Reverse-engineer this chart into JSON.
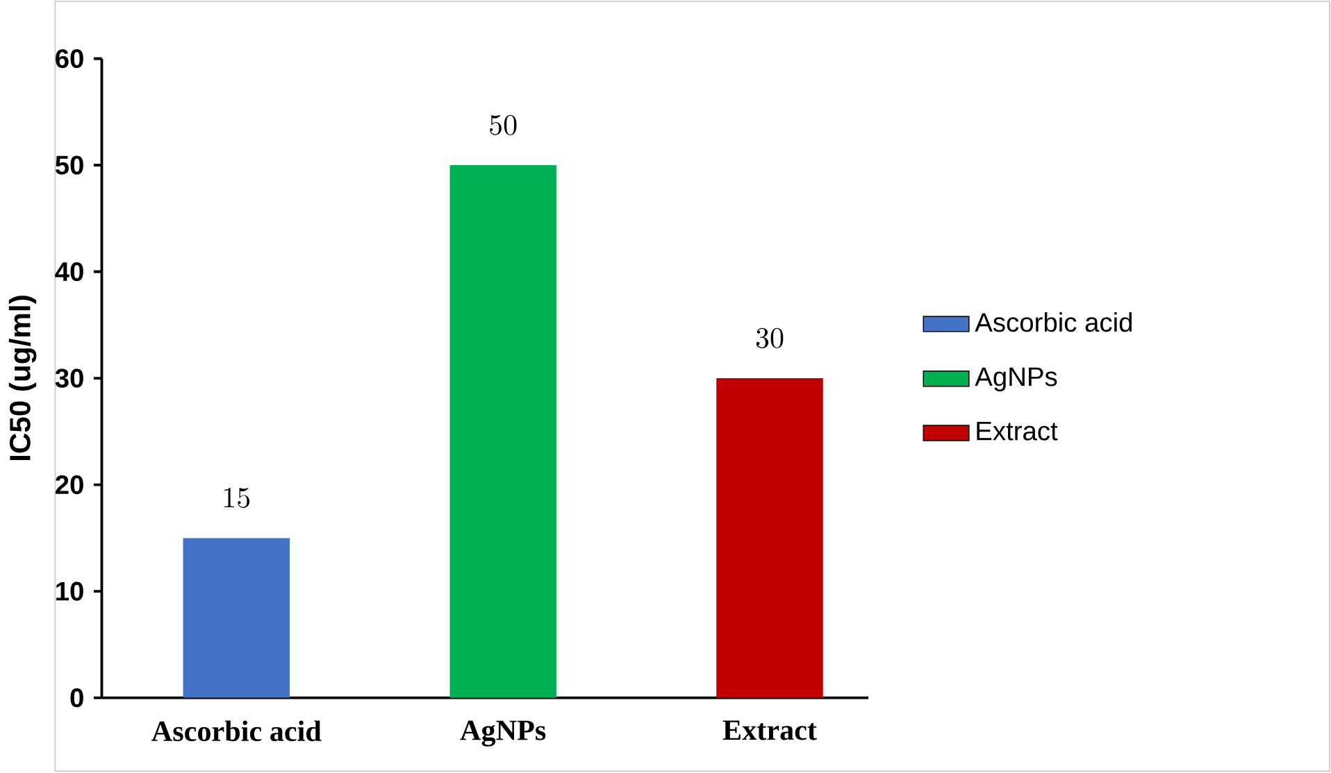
{
  "chart_data": {
    "type": "bar",
    "ylabel": "IC50 (ug/ml)",
    "categories": [
      "Ascorbic acid",
      "AgNPs",
      "Extract"
    ],
    "series": [
      {
        "name": "Ascorbic acid",
        "color": "#4472c4",
        "values": [
          15,
          null,
          null
        ]
      },
      {
        "name": "AgNPs",
        "color": "#00b050",
        "values": [
          null,
          50,
          null
        ]
      },
      {
        "name": "Extract",
        "color": "#c00000",
        "values": [
          null,
          null,
          30
        ]
      }
    ],
    "ylim": [
      0,
      60
    ],
    "yticks": [
      0,
      10,
      20,
      30,
      40,
      50,
      60
    ],
    "data_labels": true,
    "grid": false,
    "legend": "right"
  }
}
